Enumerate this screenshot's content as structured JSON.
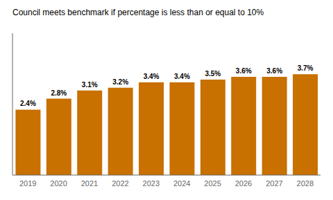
{
  "chart_data": {
    "type": "bar",
    "title": "Council meets benchmark if percentage is less than or equal to 10%",
    "categories": [
      "2019",
      "2020",
      "2021",
      "2022",
      "2023",
      "2024",
      "2025",
      "2026",
      "2027",
      "2028"
    ],
    "values": [
      2.4,
      2.8,
      3.1,
      3.2,
      3.4,
      3.4,
      3.5,
      3.6,
      3.6,
      3.7
    ],
    "value_labels": [
      "2.4%",
      "2.8%",
      "3.1%",
      "3.2%",
      "3.4%",
      "3.4%",
      "3.5%",
      "3.6%",
      "3.6%",
      "3.7%"
    ],
    "data_labels": true,
    "color": "#C87000",
    "ylim": [
      0,
      5.2
    ],
    "tick_labels": "x",
    "grid": false
  }
}
